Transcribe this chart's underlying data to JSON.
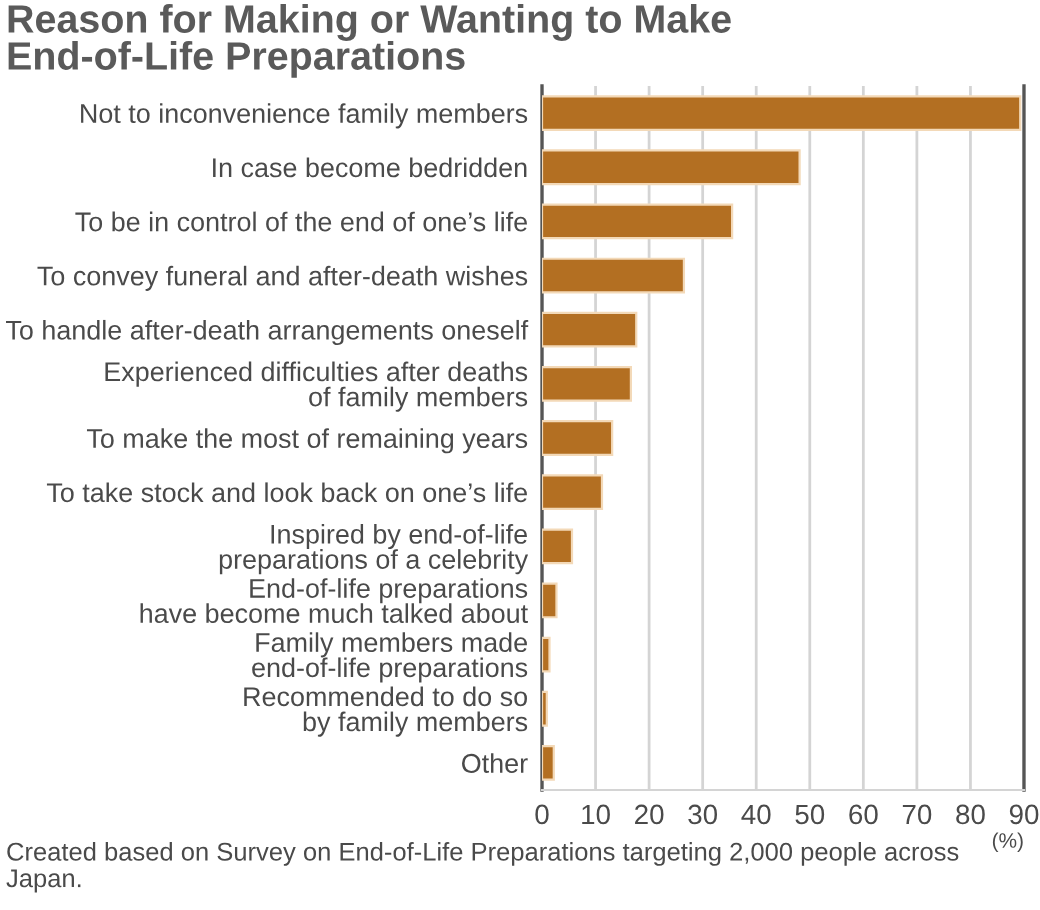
{
  "chart_data": {
    "type": "bar",
    "orientation": "horizontal",
    "title": "Reason for Making or Wanting to Make\nEnd-of-Life Preparations",
    "xlabel": "(%)",
    "categories": [
      "Not to inconvenience family members",
      "In case become bedridden",
      "To be in control of the end of one’s life",
      "To convey funeral and after-death wishes",
      "To handle after-death arrangements oneself",
      "Experienced difficulties after deaths\nof family members",
      "To make the most of remaining years",
      "To take stock and look back on one’s life",
      "Inspired by end-of-life\npreparations of a celebrity",
      "End-of-life preparations\nhave become much talked about",
      "Family members made\nend-of-life preparations",
      "Recommended to do so\nby family members",
      "Other"
    ],
    "values": [
      89.3,
      48.1,
      35.5,
      26.5,
      17.6,
      16.6,
      13.1,
      11.2,
      5.6,
      2.7,
      1.4,
      0.9,
      2.2
    ],
    "color": "#b36f22",
    "xlim": [
      0,
      90
    ],
    "xticks": [
      0,
      10,
      20,
      30,
      40,
      50,
      60,
      70,
      80,
      90
    ],
    "grid": "x",
    "annotations": [
      "Created based on Survey on End-of-Life Preparations targeting 2,000 people across Japan."
    ]
  }
}
